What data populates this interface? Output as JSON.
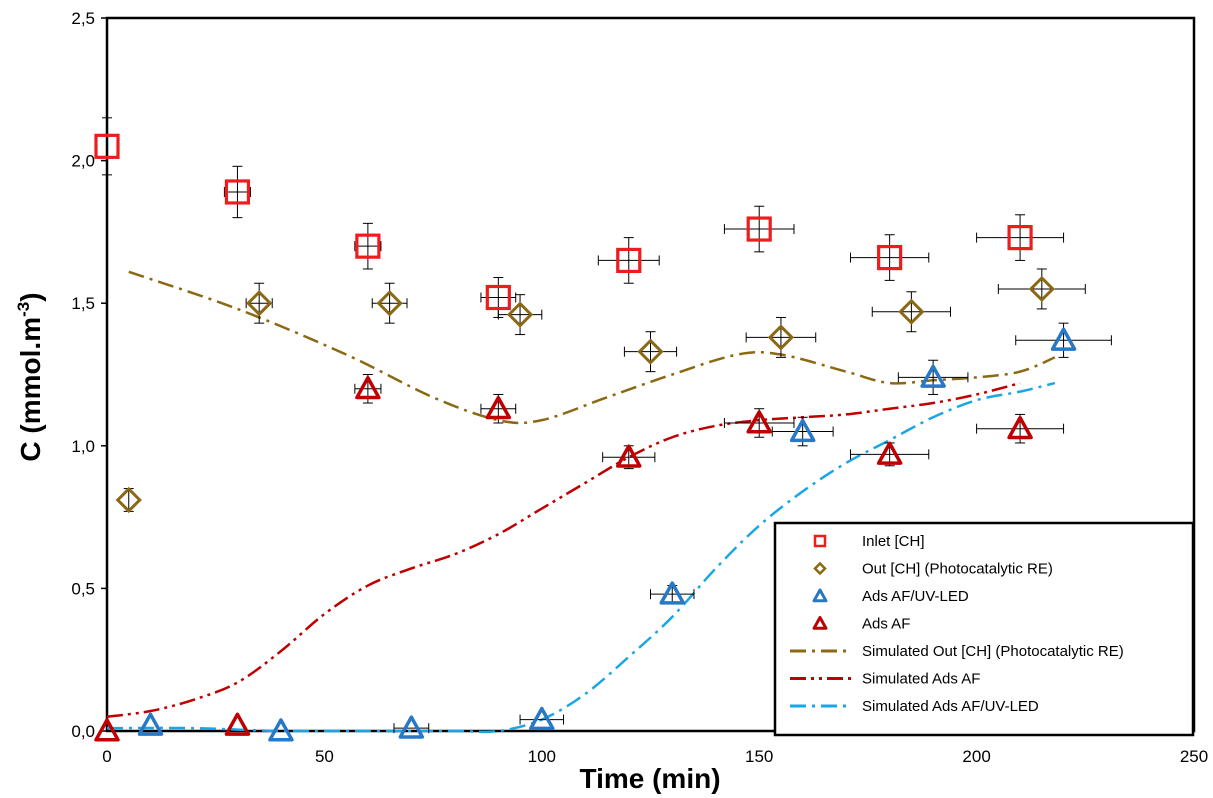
{
  "chart_data": {
    "type": "scatter",
    "xlabel": "Time (min)",
    "ylabel": "C (mmol.m",
    "ylabel_sup": "-3",
    "ylabel_end": ")",
    "xlim": [
      0,
      250
    ],
    "ylim": [
      0,
      2.5
    ],
    "x_ticks": [
      "0",
      "50",
      "100",
      "150",
      "200",
      "250"
    ],
    "y_ticks": [
      "0,0",
      "0,5",
      "1,0",
      "1,5",
      "2,0",
      "2,5"
    ],
    "grid": false,
    "legend_position": "bottom-right",
    "series": [
      {
        "name": "Inlet [CH]",
        "marker": "square",
        "color": "#ee1c1c",
        "x": [
          0,
          30,
          60,
          90,
          120,
          150,
          180,
          210
        ],
        "y": [
          2.05,
          1.89,
          1.7,
          1.52,
          1.65,
          1.76,
          1.66,
          1.73
        ],
        "x_err": [
          0,
          3,
          3,
          4,
          7,
          8,
          9,
          10
        ],
        "y_err": [
          0.1,
          0.09,
          0.08,
          0.07,
          0.08,
          0.08,
          0.08,
          0.08
        ]
      },
      {
        "name": "Out [CH] (Photocatalytic RE)",
        "marker": "diamond",
        "color": "#8b6914",
        "x": [
          5,
          35,
          65,
          95,
          125,
          155,
          185,
          215
        ],
        "y": [
          0.81,
          1.5,
          1.5,
          1.46,
          1.33,
          1.38,
          1.47,
          1.55
        ],
        "x_err": [
          0,
          3,
          4,
          5,
          6,
          8,
          9,
          10
        ],
        "y_err": [
          0.04,
          0.07,
          0.07,
          0.07,
          0.07,
          0.07,
          0.07,
          0.07
        ]
      },
      {
        "name": "Ads AF/UV-LED",
        "marker": "triangle",
        "color": "#2878c8",
        "x": [
          10,
          40,
          70,
          100,
          130,
          160,
          190,
          220
        ],
        "y": [
          0.02,
          0.0,
          0.01,
          0.04,
          0.48,
          1.05,
          1.24,
          1.37
        ],
        "x_err": [
          0,
          0,
          4,
          5,
          5,
          7,
          8,
          11
        ],
        "y_err": [
          0,
          0,
          0,
          0,
          0.03,
          0.05,
          0.06,
          0.06
        ]
      },
      {
        "name": "Ads AF",
        "marker": "triangle",
        "color": "#c00000",
        "x": [
          0,
          30,
          60,
          90,
          120,
          150,
          180,
          210
        ],
        "y": [
          0.0,
          0.02,
          1.2,
          1.13,
          0.96,
          1.08,
          0.97,
          1.06
        ],
        "x_err": [
          0,
          0,
          3,
          4,
          6,
          8,
          9,
          10
        ],
        "y_err": [
          0,
          0,
          0.05,
          0.05,
          0.04,
          0.05,
          0.04,
          0.05
        ]
      },
      {
        "name": "Simulated Out [CH] (Photocatalytic RE)",
        "line": "dashdot",
        "color": "#8b6914",
        "x": [
          5,
          30,
          55,
          75,
          90,
          100,
          115,
          130,
          145,
          155,
          170,
          180,
          190,
          200,
          210,
          218
        ],
        "y": [
          1.61,
          1.48,
          1.32,
          1.17,
          1.09,
          1.09,
          1.17,
          1.25,
          1.32,
          1.32,
          1.26,
          1.22,
          1.23,
          1.24,
          1.26,
          1.31
        ]
      },
      {
        "name": "Simulated Ads AF",
        "line": "dashdotdot",
        "color": "#c00000",
        "x": [
          0,
          10,
          20,
          30,
          40,
          50,
          60,
          70,
          80,
          90,
          100,
          110,
          120,
          130,
          140,
          150,
          160,
          170,
          180,
          190,
          200,
          210
        ],
        "y": [
          0.05,
          0.07,
          0.11,
          0.17,
          0.28,
          0.41,
          0.51,
          0.57,
          0.62,
          0.69,
          0.78,
          0.87,
          0.96,
          1.03,
          1.07,
          1.09,
          1.1,
          1.11,
          1.13,
          1.15,
          1.18,
          1.22
        ]
      },
      {
        "name": "Simulated Ads AF/UV-LED",
        "line": "dashdot",
        "color": "#1aa6e6",
        "x": [
          0,
          20,
          40,
          60,
          80,
          90,
          100,
          110,
          120,
          130,
          140,
          150,
          160,
          170,
          180,
          190,
          200,
          210,
          218
        ],
        "y": [
          0.01,
          0.01,
          0.0,
          0.0,
          0.0,
          0.0,
          0.04,
          0.13,
          0.26,
          0.4,
          0.57,
          0.72,
          0.84,
          0.94,
          1.02,
          1.1,
          1.16,
          1.19,
          1.22
        ]
      }
    ]
  }
}
